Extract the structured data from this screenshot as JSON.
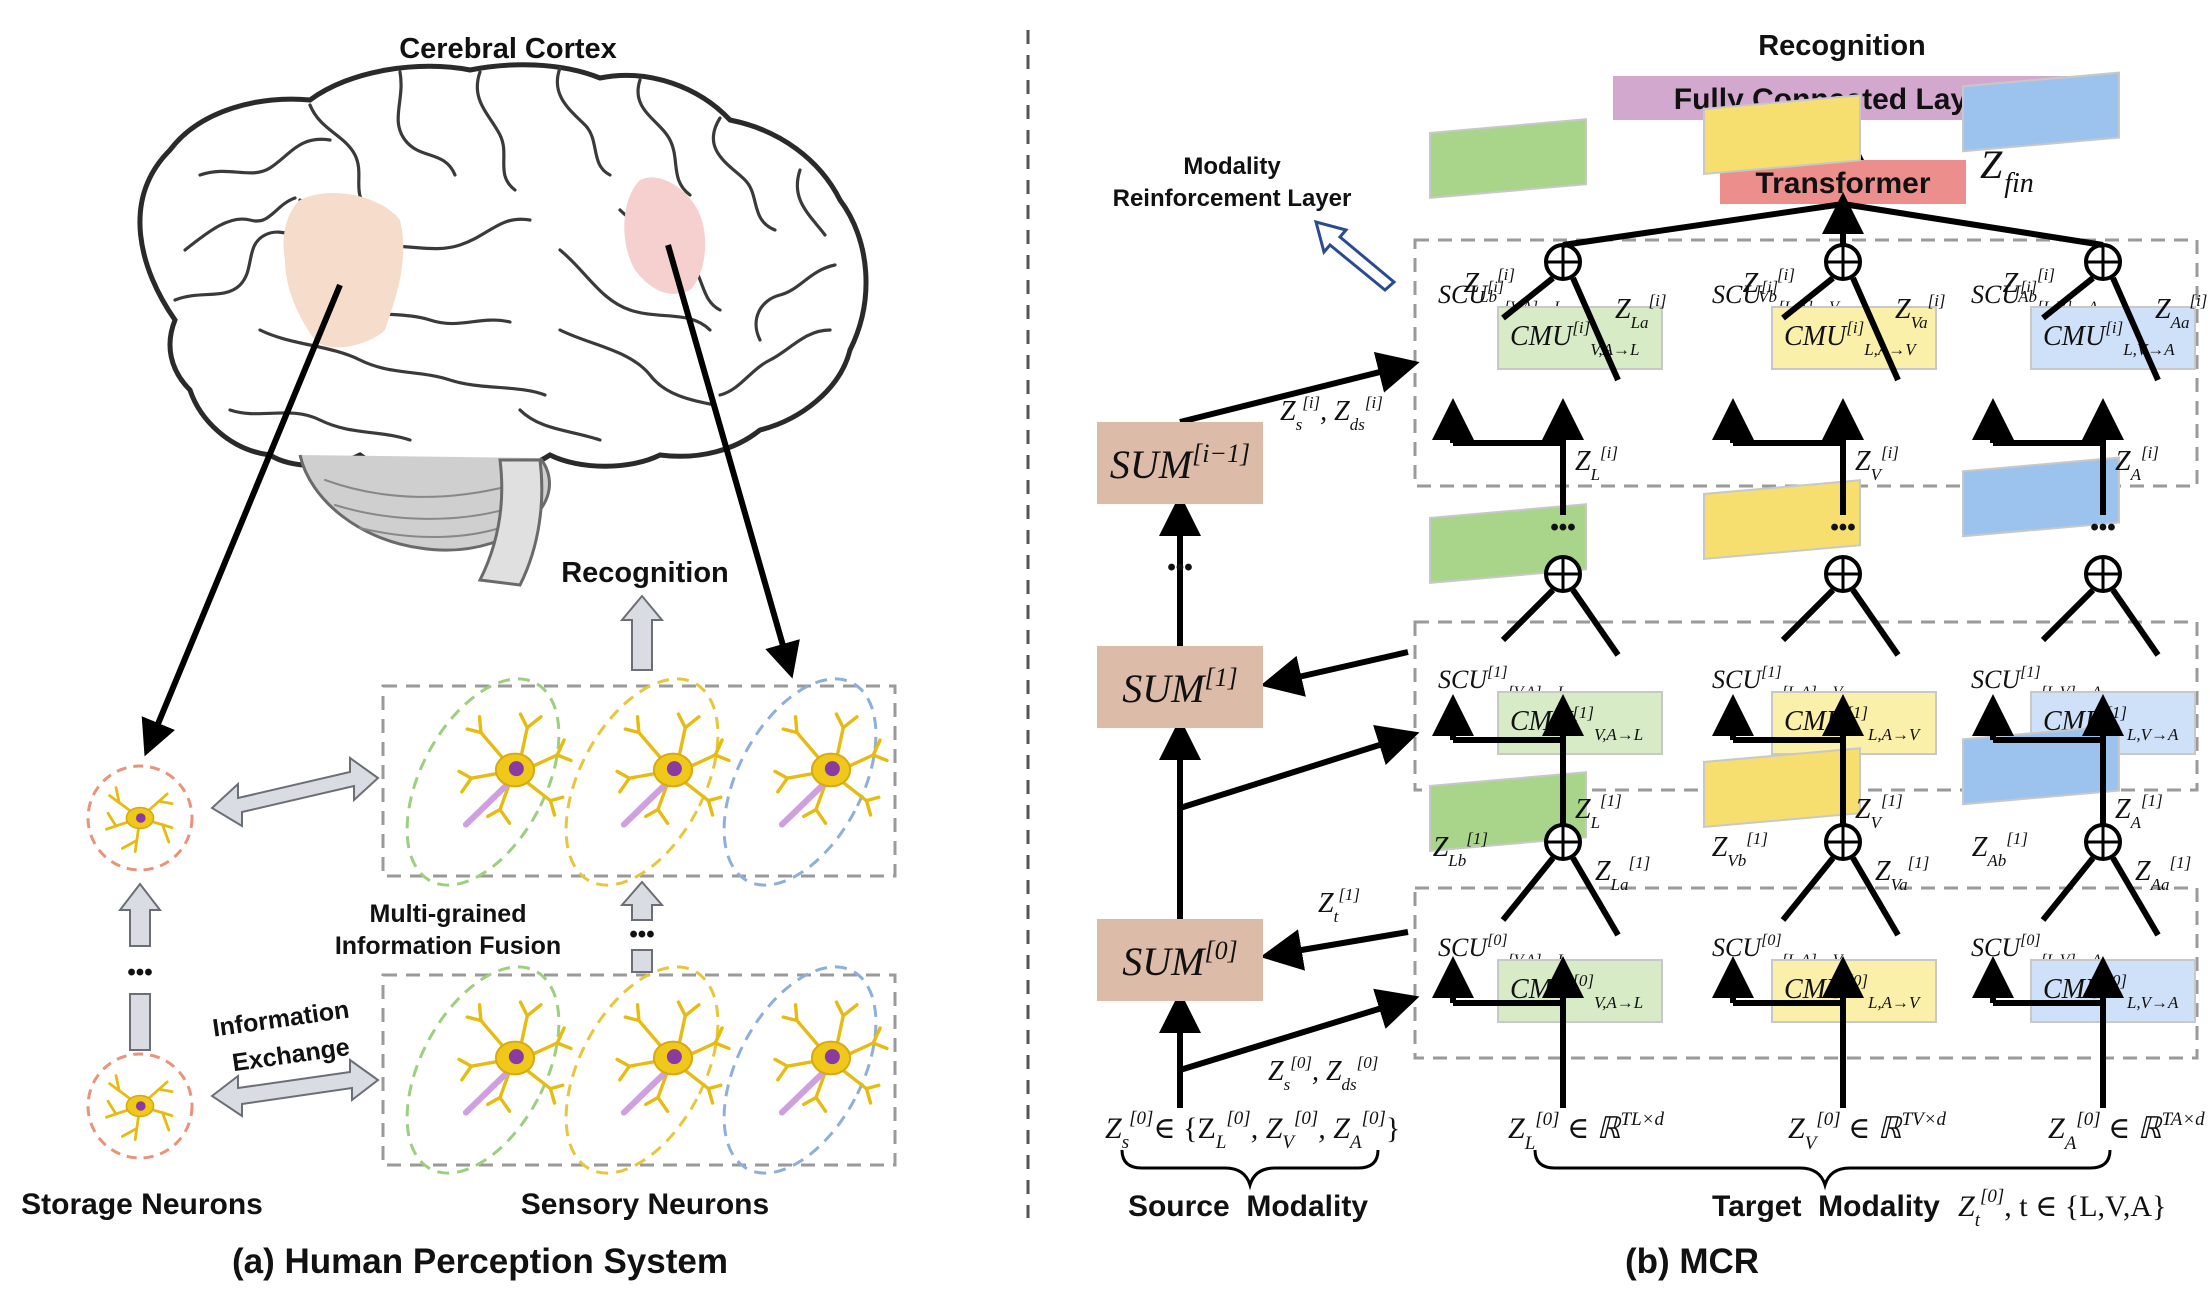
{
  "panel_a": {
    "title": "Cerebral Cortex",
    "recognition": "Recognition",
    "fusion": [
      "Multi-grained",
      "Information Fusion"
    ],
    "exchange": [
      "Information",
      "Exchange"
    ],
    "storage": "Storage Neurons",
    "sensory": "Sensory Neurons",
    "caption": "(a) Human Perception System",
    "dots": "•••"
  },
  "panel_b": {
    "recognition": "Recognition",
    "fc": "Fully Connected Layers",
    "transformer": "Transformer",
    "zfin": "Z",
    "zfin_sub": "fin",
    "mrl": [
      "Modality",
      "Reinforcement Layer"
    ],
    "sum_base": "SUM",
    "sum_sup": [
      "[i−1]",
      "[1]",
      "[0]"
    ],
    "scu_base": "SCU",
    "cmu_base": "CMU",
    "layer_sup": [
      "[i]",
      "[1]",
      "[0]"
    ],
    "scu_sub": [
      "[V,A]→L",
      "[L,A]→V",
      "[L,V]→A"
    ],
    "cmu_sub": [
      "V,A→L",
      "L,A→V",
      "L,V→A"
    ],
    "mods": [
      "L",
      "V",
      "A"
    ],
    "zs_text": "Z",
    "source_set": "∈ {Z",
    "source": "Source  Modality",
    "target": "Target  Modality",
    "target_set": ", t ∈ {L,V,A}",
    "caption": "(b) MCR",
    "dots": "•••"
  },
  "colors": {
    "scu": [
      "#a8d58a",
      "#f6df6e",
      "#9cc3ee"
    ],
    "cmu": [
      "#d7ebc7",
      "#fbf0a9",
      "#cfe1f8"
    ],
    "sum": "#dcbca9",
    "transformer": "#ec8f8c",
    "fc": "#d3a8cf",
    "brain_left": "#f6dccb",
    "brain_right": "#f6cfcf",
    "ellipses": [
      "#9ccf7e",
      "#e8c63c",
      "#8eaedc"
    ],
    "neuron": "#f0c81a"
  }
}
